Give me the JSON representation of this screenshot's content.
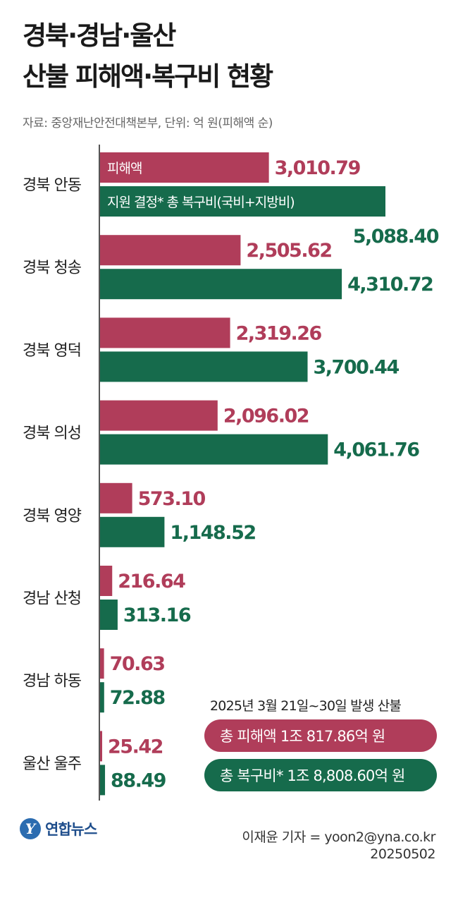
{
  "header": {
    "title_line1": "경북·경남·울산",
    "title_line2": "산불 피해액·복구비 현황",
    "subtitle": "자료: 중앙재난안전대책본부, 단위: 억 원(피해액 순)"
  },
  "chart_data": {
    "type": "bar",
    "orientation": "horizontal",
    "categories": [
      "경북 안동",
      "경북 청송",
      "경북 영덕",
      "경북 의성",
      "경북 영양",
      "경남 산청",
      "경남 하동",
      "울산 울주"
    ],
    "series": [
      {
        "name": "피해액",
        "color": "#b03d5a",
        "values": [
          3010.79,
          2505.62,
          2319.26,
          2096.02,
          573.1,
          216.64,
          70.63,
          25.42
        ],
        "labels": [
          "3,010.79",
          "2,505.62",
          "2,319.26",
          "2,096.02",
          "573.10",
          "216.64",
          "70.63",
          "25.42"
        ]
      },
      {
        "name": "지원 결정* 총 복구비(국비+지방비)",
        "color": "#166b4c",
        "values": [
          5088.4,
          4310.72,
          3700.44,
          4061.76,
          1148.52,
          313.16,
          72.88,
          88.49
        ],
        "labels": [
          "5,088.40",
          "4,310.72",
          "3,700.44",
          "4,061.76",
          "1,148.52",
          "313.16",
          "72.88",
          "88.49"
        ]
      }
    ],
    "legend_position": "inside-first-bars",
    "grid": false
  },
  "summary": {
    "period": "2025년 3월 21일~30일 발생 산불",
    "total_damage": "총 피해액   1조 817.86억 원",
    "total_recovery": "총 복구비* 1조 8,808.60억 원"
  },
  "footer": {
    "logo_symbol": "Y",
    "logo_text": "연합뉴스",
    "reporter": "이재윤 기자 = yoon2@yna.co.kr",
    "date": "20250502"
  },
  "colors": {
    "damage": "#b03d5a",
    "recovery": "#166b4c"
  }
}
